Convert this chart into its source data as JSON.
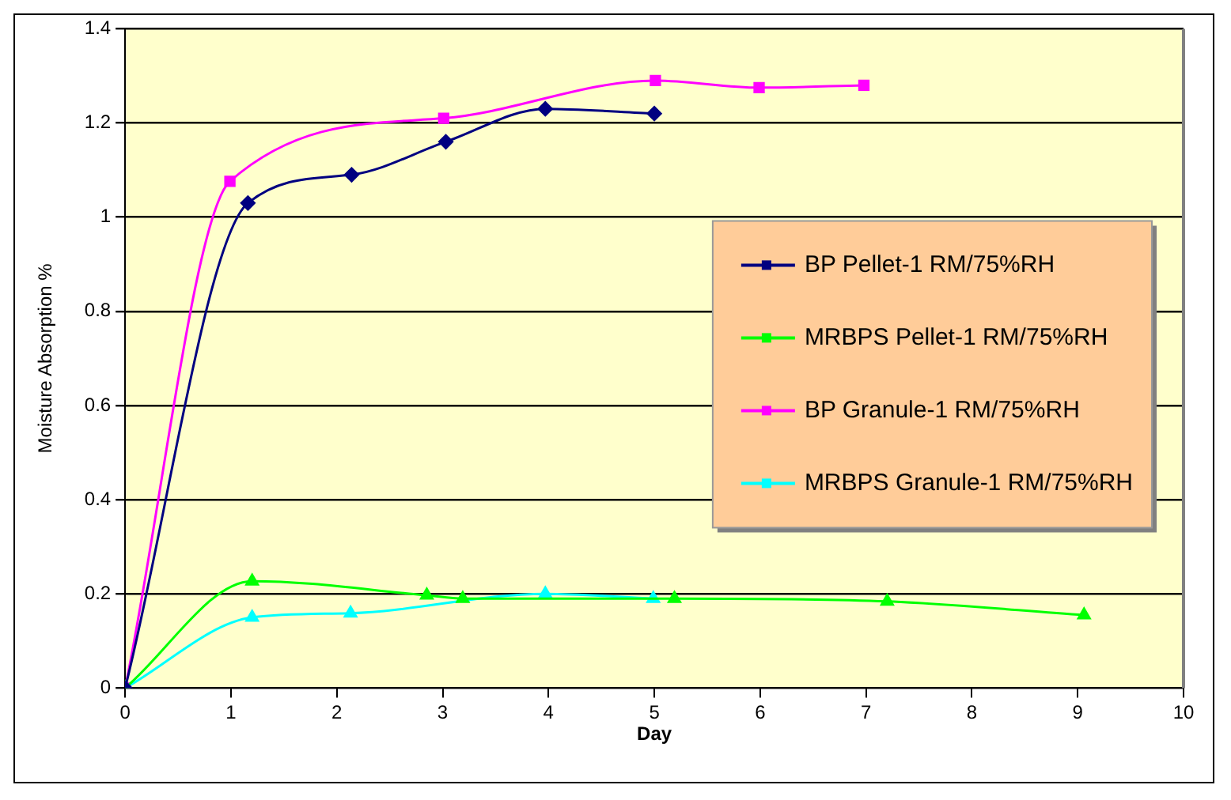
{
  "chart_data": {
    "type": "line",
    "xlabel": "Day",
    "ylabel": "Moisture Absorption %",
    "xlim": [
      0,
      10
    ],
    "xticks": [
      0,
      1,
      2,
      3,
      4,
      5,
      6,
      7,
      8,
      9,
      10
    ],
    "ylim": [
      0,
      1.4
    ],
    "yticks": [
      0,
      0.2,
      0.4,
      0.6,
      0.8,
      1,
      1.2,
      1.4
    ],
    "grid": "y",
    "legend": "right",
    "series": [
      {
        "name": "BP Pellet-1 RM/75%RH",
        "color": "#000080",
        "marker": "diamond",
        "x": [
          0,
          1.16,
          2.14,
          3.03,
          3.97,
          5.0
        ],
        "values": [
          0,
          1.03,
          1.09,
          1.16,
          1.23,
          1.22
        ]
      },
      {
        "name": "MRBPS Pellet-1 RM/75%RH",
        "color": "#00ff00",
        "marker": "triangle",
        "x": [
          0,
          1.2,
          2.85,
          3.19,
          5.19,
          7.2,
          9.06
        ],
        "values": [
          0,
          0.227,
          0.197,
          0.19,
          0.19,
          0.184,
          0.155
        ]
      },
      {
        "name": "BP Granule-1 RM/75%RH",
        "color": "#ff00ff",
        "marker": "square",
        "x": [
          0,
          0.99,
          3.01,
          5.01,
          5.99,
          6.98
        ],
        "values": [
          0,
          1.076,
          1.21,
          1.29,
          1.275,
          1.28
        ]
      },
      {
        "name": "MRBPS Granule-1 RM/75%RH",
        "color": "#00ffff",
        "marker": "triangle",
        "x": [
          0,
          1.2,
          2.13,
          3.97,
          4.99
        ],
        "values": [
          0,
          0.15,
          0.159,
          0.2,
          0.19
        ]
      }
    ]
  }
}
